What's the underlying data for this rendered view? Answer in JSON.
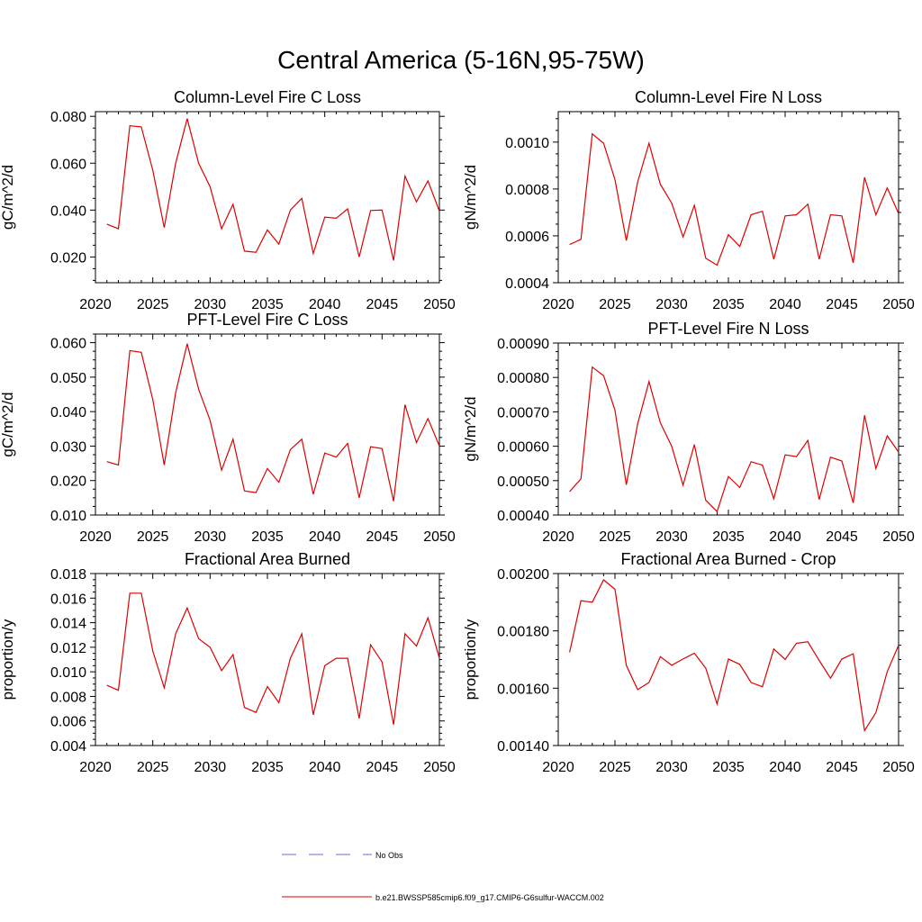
{
  "figure_title": "Central America (5-16N,95-75W)",
  "legend": {
    "entries": [
      {
        "label": "No Obs",
        "color": "#6b6bd6",
        "style": "dashed"
      },
      {
        "label": "b.e21.BWSSP585cmip6.f09_g17.CMIP6-G6sulfur-WACCM.002",
        "color": "#e00000",
        "style": "solid"
      }
    ]
  },
  "colors": {
    "series": "#e00000",
    "axis": "#000000",
    "no_obs": "#6b6bd6"
  },
  "chart_data": [
    {
      "type": "line",
      "title": "Column-Level Fire C Loss",
      "ylabel": "gC/m^2/d",
      "xlim": [
        2020,
        2050
      ],
      "ylim": [
        0.009,
        0.082
      ],
      "xticks": [
        2020,
        2025,
        2030,
        2035,
        2040,
        2045,
        2050
      ],
      "xtick_labels": [
        "2020",
        "2025",
        "2030",
        "2035",
        "2040",
        "2045",
        "2050"
      ],
      "yticks": [
        0.02,
        0.04,
        0.06,
        0.08
      ],
      "ytick_labels": [
        "0.020",
        "0.040",
        "0.060",
        "0.080"
      ],
      "x": [
        2021,
        2022,
        2023,
        2024,
        2025,
        2026,
        2027,
        2028,
        2029,
        2030,
        2031,
        2032,
        2033,
        2034,
        2035,
        2036,
        2037,
        2038,
        2039,
        2040,
        2041,
        2042,
        2043,
        2044,
        2045,
        2046,
        2047,
        2048,
        2049,
        2050
      ],
      "series": [
        {
          "values": [
            0.034,
            0.032,
            0.076,
            0.0755,
            0.057,
            0.0325,
            0.06,
            0.079,
            0.06,
            0.05,
            0.032,
            0.0425,
            0.0225,
            0.022,
            0.0315,
            0.0255,
            0.04,
            0.045,
            0.0215,
            0.037,
            0.0365,
            0.0405,
            0.02,
            0.0398,
            0.04,
            0.0185,
            0.0545,
            0.0435,
            0.0525,
            0.0395
          ]
        }
      ]
    },
    {
      "type": "line",
      "title": "Column-Level Fire N Loss",
      "ylabel": "gN/m^2/d",
      "xlim": [
        2020,
        2050
      ],
      "ylim": [
        0.0004,
        0.00113
      ],
      "xticks": [
        2020,
        2025,
        2030,
        2035,
        2040,
        2045,
        2050
      ],
      "xtick_labels": [
        "2020",
        "2025",
        "2030",
        "2035",
        "2040",
        "2045",
        "2050"
      ],
      "yticks": [
        0.0004,
        0.0006,
        0.0008,
        0.001
      ],
      "ytick_labels": [
        "0.0004",
        "0.0006",
        "0.0008",
        "0.0010"
      ],
      "x": [
        2021,
        2022,
        2023,
        2024,
        2025,
        2026,
        2027,
        2028,
        2029,
        2030,
        2031,
        2032,
        2033,
        2034,
        2035,
        2036,
        2037,
        2038,
        2039,
        2040,
        2041,
        2042,
        2043,
        2044,
        2045,
        2046,
        2047,
        2048,
        2049,
        2050
      ],
      "series": [
        {
          "values": [
            0.000563,
            0.000585,
            0.001035,
            0.000995,
            0.00084,
            0.00058,
            0.00083,
            0.000995,
            0.00082,
            0.00074,
            0.000595,
            0.00073,
            0.000505,
            0.000475,
            0.000605,
            0.000555,
            0.00069,
            0.000705,
            0.0005,
            0.000685,
            0.00069,
            0.000735,
            0.0005,
            0.00069,
            0.000685,
            0.000485,
            0.00085,
            0.00069,
            0.000805,
            0.000695
          ]
        }
      ]
    },
    {
      "type": "line",
      "title": "PFT-Level Fire C Loss",
      "ylabel": "gC/m^2/d",
      "xlim": [
        2020,
        2050
      ],
      "ylim": [
        0.01,
        0.0625
      ],
      "xticks": [
        2020,
        2025,
        2030,
        2035,
        2040,
        2045,
        2050
      ],
      "xtick_labels": [
        "2020",
        "2025",
        "2030",
        "2035",
        "2040",
        "2045",
        "2050"
      ],
      "yticks": [
        0.01,
        0.02,
        0.03,
        0.04,
        0.05,
        0.06
      ],
      "ytick_labels": [
        "0.010",
        "0.020",
        "0.030",
        "0.040",
        "0.050",
        "0.060"
      ],
      "x": [
        2021,
        2022,
        2023,
        2024,
        2025,
        2026,
        2027,
        2028,
        2029,
        2030,
        2031,
        2032,
        2033,
        2034,
        2035,
        2036,
        2037,
        2038,
        2039,
        2040,
        2041,
        2042,
        2043,
        2044,
        2045,
        2046,
        2047,
        2048,
        2049,
        2050
      ],
      "series": [
        {
          "values": [
            0.0255,
            0.0245,
            0.0577,
            0.0572,
            0.0435,
            0.0245,
            0.0455,
            0.0597,
            0.0465,
            0.0375,
            0.023,
            0.032,
            0.017,
            0.0165,
            0.0235,
            0.0195,
            0.029,
            0.032,
            0.016,
            0.028,
            0.0268,
            0.0308,
            0.015,
            0.0298,
            0.0293,
            0.014,
            0.042,
            0.031,
            0.038,
            0.03
          ]
        }
      ]
    },
    {
      "type": "line",
      "title": "PFT-Level Fire N Loss",
      "ylabel": "gN/m^2/d",
      "xlim": [
        2020,
        2050
      ],
      "ylim": [
        0.0004,
        0.0009
      ],
      "xticks": [
        2020,
        2025,
        2030,
        2035,
        2040,
        2045,
        2050
      ],
      "xtick_labels": [
        "2020",
        "2025",
        "2030",
        "2035",
        "2040",
        "2045",
        "2050"
      ],
      "yticks": [
        0.0004,
        0.0005,
        0.0006,
        0.0007,
        0.0008,
        0.0009
      ],
      "ytick_labels": [
        "0.00040",
        "0.00050",
        "0.00060",
        "0.00070",
        "0.00080",
        "0.00090"
      ],
      "x": [
        2021,
        2022,
        2023,
        2024,
        2025,
        2026,
        2027,
        2028,
        2029,
        2030,
        2031,
        2032,
        2033,
        2034,
        2035,
        2036,
        2037,
        2038,
        2039,
        2040,
        2041,
        2042,
        2043,
        2044,
        2045,
        2046,
        2047,
        2048,
        2049,
        2050
      ],
      "series": [
        {
          "values": [
            0.000468,
            0.000505,
            0.00083,
            0.000805,
            0.000705,
            0.000488,
            0.000665,
            0.000788,
            0.000668,
            0.0006,
            0.000487,
            0.000605,
            0.000443,
            0.00041,
            0.000512,
            0.00048,
            0.000555,
            0.000545,
            0.000447,
            0.000575,
            0.00057,
            0.000617,
            0.000445,
            0.000568,
            0.000557,
            0.000435,
            0.00069,
            0.000535,
            0.00063,
            0.000583
          ]
        }
      ]
    },
    {
      "type": "line",
      "title": "Fractional Area Burned",
      "ylabel": "proportion/y",
      "xlim": [
        2020,
        2050
      ],
      "ylim": [
        0.004,
        0.018
      ],
      "xticks": [
        2020,
        2025,
        2030,
        2035,
        2040,
        2045,
        2050
      ],
      "xtick_labels": [
        "2020",
        "2025",
        "2030",
        "2035",
        "2040",
        "2045",
        "2050"
      ],
      "yticks": [
        0.004,
        0.006,
        0.008,
        0.01,
        0.012,
        0.014,
        0.016,
        0.018
      ],
      "ytick_labels": [
        "0.004",
        "0.006",
        "0.008",
        "0.010",
        "0.012",
        "0.014",
        "0.016",
        "0.018"
      ],
      "x": [
        2021,
        2022,
        2023,
        2024,
        2025,
        2026,
        2027,
        2028,
        2029,
        2030,
        2031,
        2032,
        2033,
        2034,
        2035,
        2036,
        2037,
        2038,
        2039,
        2040,
        2041,
        2042,
        2043,
        2044,
        2045,
        2046,
        2047,
        2048,
        2049,
        2050
      ],
      "series": [
        {
          "values": [
            0.0089,
            0.0085,
            0.0164,
            0.0164,
            0.0117,
            0.0087,
            0.0131,
            0.0152,
            0.0127,
            0.012,
            0.0101,
            0.0114,
            0.0071,
            0.0067,
            0.0088,
            0.0075,
            0.0111,
            0.0131,
            0.0065,
            0.0105,
            0.0111,
            0.0111,
            0.0062,
            0.0122,
            0.0108,
            0.0057,
            0.0131,
            0.0121,
            0.0144,
            0.0111
          ]
        }
      ]
    },
    {
      "type": "line",
      "title": "Fractional Area Burned - Crop",
      "ylabel": "proportion/y",
      "xlim": [
        2020,
        2050
      ],
      "ylim": [
        0.0014,
        0.002
      ],
      "xticks": [
        2020,
        2025,
        2030,
        2035,
        2040,
        2045,
        2050
      ],
      "xtick_labels": [
        "2020",
        "2025",
        "2030",
        "2035",
        "2040",
        "2045",
        "2050"
      ],
      "yticks": [
        0.0014,
        0.0016,
        0.0018,
        0.002
      ],
      "ytick_labels": [
        "0.00140",
        "0.00160",
        "0.00180",
        "0.00200"
      ],
      "x": [
        2021,
        2022,
        2023,
        2024,
        2025,
        2026,
        2027,
        2028,
        2029,
        2030,
        2031,
        2032,
        2033,
        2034,
        2035,
        2036,
        2037,
        2038,
        2039,
        2040,
        2041,
        2042,
        2043,
        2044,
        2045,
        2046,
        2047,
        2048,
        2049,
        2050
      ],
      "series": [
        {
          "values": [
            0.001725,
            0.001905,
            0.0019,
            0.001978,
            0.001945,
            0.00168,
            0.001595,
            0.00162,
            0.00171,
            0.00168,
            0.001702,
            0.001722,
            0.00167,
            0.001545,
            0.001702,
            0.001683,
            0.00162,
            0.001605,
            0.001737,
            0.0017,
            0.001757,
            0.001762,
            0.001697,
            0.001635,
            0.001702,
            0.00172,
            0.001452,
            0.001515,
            0.001658,
            0.00175
          ]
        }
      ]
    }
  ]
}
